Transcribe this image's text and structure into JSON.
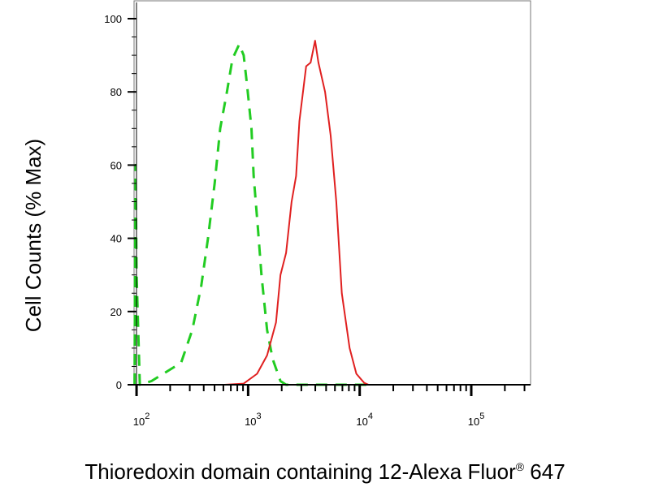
{
  "chart_data": {
    "type": "line",
    "title": "",
    "xlabel": "Thioredoxin domain containing 12-Alexa Fluor",
    "xlabel_mark": "®",
    "xlabel_suffix": " 647",
    "ylabel": "Cell Counts (% Max)",
    "x_scale": "log",
    "xlim": [
      95,
      340000
    ],
    "ylim": [
      0,
      100
    ],
    "grid": false,
    "legend": "none",
    "x_ticks": [
      {
        "base": "10",
        "exp": "2",
        "value": 100
      },
      {
        "base": "10",
        "exp": "3",
        "value": 1000
      },
      {
        "base": "10",
        "exp": "4",
        "value": 10000
      },
      {
        "base": "10",
        "exp": "5",
        "value": 100000
      }
    ],
    "y_ticks": [
      "0",
      "20",
      "40",
      "60",
      "80",
      "100"
    ],
    "series": [
      {
        "color": "#22cc22",
        "style": "dashed",
        "x": [
          96,
          98,
          100,
          107,
          136,
          251,
          316,
          380,
          437,
          501,
          562,
          646,
          724,
          832,
          912,
          977,
          1072,
          1122,
          1230,
          1318,
          1479,
          1660,
          1950,
          2188,
          12000
        ],
        "y": [
          0,
          60,
          30,
          0,
          1,
          6,
          15,
          27,
          40,
          55,
          70,
          80,
          89,
          93,
          90,
          82,
          70,
          57,
          42,
          30,
          15,
          7,
          1,
          0,
          0
        ]
      },
      {
        "color": "#e02020",
        "style": "solid",
        "x": [
          95,
          617,
          912,
          1202,
          1479,
          1778,
          1950,
          2188,
          2455,
          2692,
          2884,
          3311,
          3631,
          3981,
          4266,
          4898,
          5495,
          6166,
          6918,
          8128,
          9333,
          10965,
          12023,
          340000
        ],
        "y": [
          0,
          0,
          0.3,
          3,
          8,
          17,
          30,
          36,
          50,
          57,
          72,
          87,
          88,
          94,
          88,
          80,
          68,
          50,
          25,
          10,
          3,
          0.5,
          0,
          0
        ]
      }
    ]
  }
}
